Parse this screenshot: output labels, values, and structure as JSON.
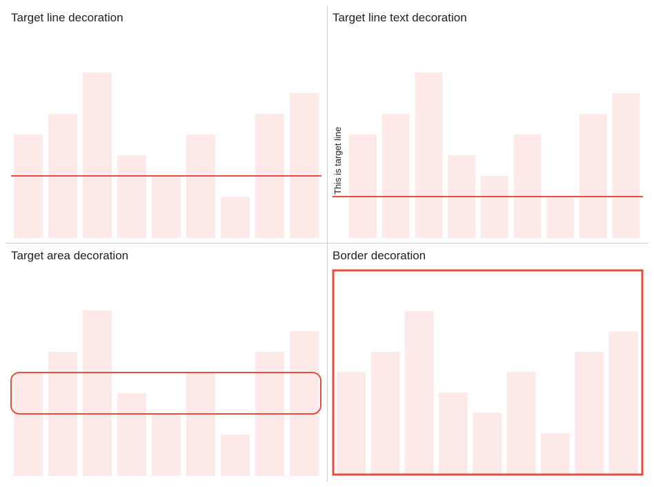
{
  "colors": {
    "bar": "#fdeae8",
    "decoration": "#e94b3c",
    "divider": "#cccccc"
  },
  "panels": [
    {
      "title": "Target line decoration",
      "decoration": "target-line"
    },
    {
      "title": "Target line text decoration",
      "decoration": "target-line-text",
      "target_line_text": "This is target line"
    },
    {
      "title": "Target area decoration",
      "decoration": "target-area"
    },
    {
      "title": "Border decoration",
      "decoration": "border"
    }
  ],
  "chart_data": [
    {
      "type": "bar",
      "title": "Target line decoration",
      "values": [
        5,
        6,
        8,
        4,
        3,
        5,
        2,
        6,
        7
      ],
      "ylim": [
        0,
        8
      ],
      "target": 3
    },
    {
      "type": "bar",
      "title": "Target line text decoration",
      "values": [
        5,
        6,
        8,
        4,
        3,
        5,
        2,
        6,
        7
      ],
      "ylim": [
        0,
        8
      ],
      "target": 2,
      "target_label": "This is target line"
    },
    {
      "type": "bar",
      "title": "Target area decoration",
      "values": [
        5,
        6,
        8,
        4,
        3,
        5,
        2,
        6,
        7
      ],
      "ylim": [
        0,
        8
      ],
      "target_area": [
        3,
        5
      ]
    },
    {
      "type": "bar",
      "title": "Border decoration",
      "values": [
        5,
        6,
        8,
        4,
        3,
        5,
        2,
        6,
        7
      ],
      "ylim": [
        0,
        8
      ]
    }
  ]
}
